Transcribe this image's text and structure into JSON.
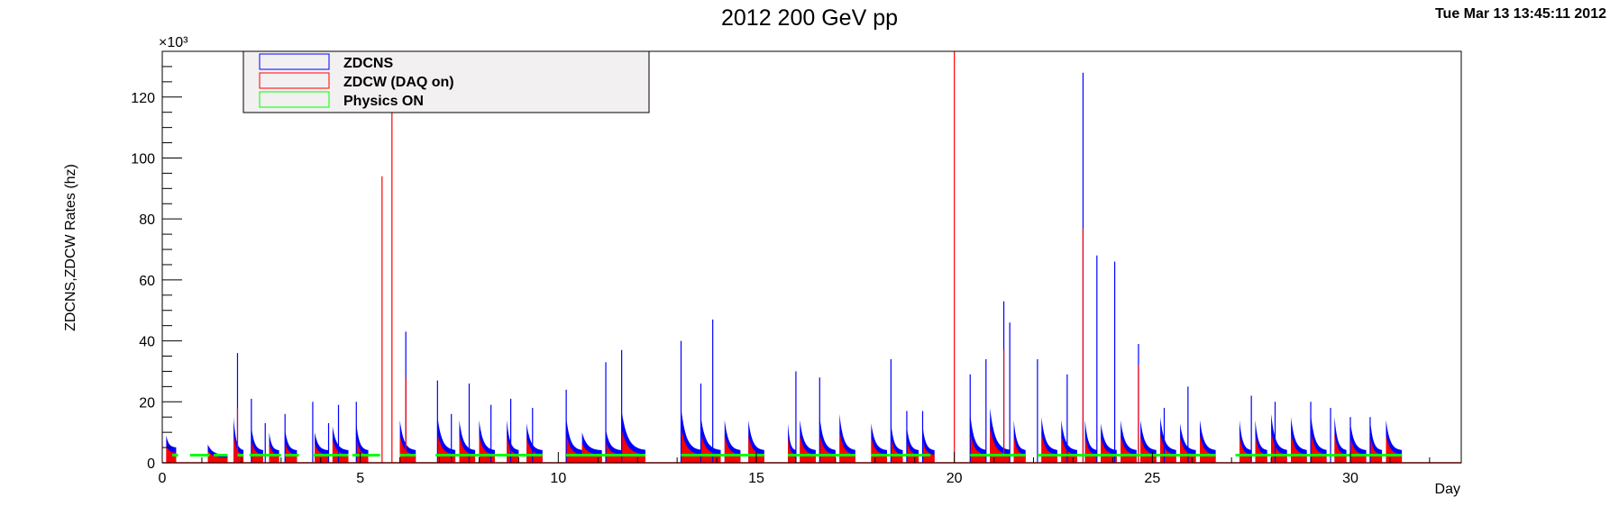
{
  "chart_data": {
    "type": "bar",
    "title": "2012 200 GeV pp",
    "timestamp": "Tue Mar 13 13:45:11 2012",
    "xlabel": "Day",
    "ylabel": "ZDCNS,ZDCW Rates (hz)",
    "y_exponent_label": "×10³",
    "xlim": [
      0,
      32.8
    ],
    "ylim": [
      0,
      135
    ],
    "x_ticks": [
      "0",
      "5",
      "10",
      "15",
      "20",
      "25",
      "30"
    ],
    "y_ticks": [
      "0",
      "20",
      "40",
      "60",
      "80",
      "100",
      "120"
    ],
    "grid": false,
    "legend_position": "top-left",
    "colors": {
      "ZDCNS": "#0000ff",
      "ZDCW (DAQ on)": "#ff0000",
      "Physics ON": "#00ff00"
    },
    "legend": [
      {
        "name": "ZDCNS",
        "color": "#0000ff"
      },
      {
        "name": "ZDCW (DAQ on)",
        "color": "#ff0000"
      },
      {
        "name": "Physics ON",
        "color": "#00ff00"
      }
    ],
    "series": [
      {
        "name": "ZDCNS",
        "values_note": "fills: [start_day, end_day, peak_rate_khz, end_rate_khz]",
        "fills": [
          [
            0.1,
            0.35,
            9,
            5
          ],
          [
            1.15,
            1.65,
            6,
            2.5
          ],
          [
            1.8,
            2.05,
            15,
            4
          ],
          [
            2.25,
            2.55,
            12,
            4
          ],
          [
            2.7,
            2.95,
            10,
            4
          ],
          [
            3.1,
            3.4,
            11,
            4
          ],
          [
            3.85,
            4.2,
            10,
            4
          ],
          [
            4.3,
            4.7,
            12,
            4
          ],
          [
            4.9,
            5.2,
            13,
            4
          ],
          [
            6.0,
            6.4,
            14,
            4
          ],
          [
            6.95,
            7.4,
            15,
            4
          ],
          [
            7.5,
            7.9,
            14,
            4
          ],
          [
            8.0,
            8.4,
            14,
            4
          ],
          [
            8.7,
            9.0,
            14,
            4
          ],
          [
            9.2,
            9.6,
            13,
            4
          ],
          [
            10.2,
            10.6,
            15,
            4
          ],
          [
            10.6,
            11.1,
            10,
            4
          ],
          [
            11.2,
            11.6,
            11,
            4
          ],
          [
            11.6,
            12.2,
            17,
            4
          ],
          [
            13.1,
            13.6,
            18,
            4
          ],
          [
            13.6,
            14.1,
            15,
            4
          ],
          [
            14.2,
            14.6,
            14,
            4
          ],
          [
            14.8,
            15.2,
            14,
            4
          ],
          [
            15.8,
            16.0,
            13,
            4
          ],
          [
            16.1,
            16.5,
            14,
            4
          ],
          [
            16.6,
            17.0,
            15,
            4
          ],
          [
            17.1,
            17.5,
            16,
            4
          ],
          [
            17.9,
            18.3,
            13,
            4
          ],
          [
            18.4,
            18.7,
            13,
            4
          ],
          [
            18.8,
            19.1,
            12,
            4
          ],
          [
            19.2,
            19.5,
            12,
            4
          ],
          [
            20.4,
            20.8,
            16,
            4
          ],
          [
            20.9,
            21.4,
            18,
            4
          ],
          [
            21.5,
            21.8,
            14,
            4
          ],
          [
            22.2,
            22.6,
            15,
            4
          ],
          [
            22.7,
            23.1,
            14,
            4
          ],
          [
            23.3,
            23.6,
            14,
            4
          ],
          [
            23.7,
            24.1,
            13,
            4
          ],
          [
            24.2,
            24.6,
            14,
            4
          ],
          [
            24.7,
            25.1,
            14,
            4
          ],
          [
            25.2,
            25.6,
            15,
            4
          ],
          [
            25.7,
            26.1,
            13,
            4
          ],
          [
            26.2,
            26.6,
            14,
            4
          ],
          [
            27.2,
            27.5,
            14,
            4
          ],
          [
            27.6,
            27.9,
            14,
            4
          ],
          [
            28.0,
            28.4,
            16,
            4
          ],
          [
            28.5,
            28.9,
            15,
            4
          ],
          [
            29.0,
            29.4,
            16,
            4
          ],
          [
            29.6,
            29.9,
            15,
            4
          ],
          [
            30.0,
            30.4,
            13,
            4
          ],
          [
            30.5,
            30.8,
            14,
            4
          ],
          [
            30.9,
            31.3,
            14,
            4
          ]
        ],
        "spikes": [
          [
            1.9,
            36
          ],
          [
            2.25,
            21
          ],
          [
            2.6,
            13
          ],
          [
            3.1,
            16
          ],
          [
            3.8,
            20
          ],
          [
            4.2,
            13
          ],
          [
            4.45,
            19
          ],
          [
            4.9,
            20
          ],
          [
            6.15,
            43
          ],
          [
            6.95,
            27
          ],
          [
            7.3,
            16
          ],
          [
            7.75,
            26
          ],
          [
            8.3,
            19
          ],
          [
            8.8,
            21
          ],
          [
            9.35,
            18
          ],
          [
            10.2,
            24
          ],
          [
            11.2,
            33
          ],
          [
            11.6,
            37
          ],
          [
            13.1,
            40
          ],
          [
            13.6,
            26
          ],
          [
            13.9,
            47
          ],
          [
            16.0,
            30
          ],
          [
            16.6,
            28
          ],
          [
            18.4,
            34
          ],
          [
            18.8,
            17
          ],
          [
            19.2,
            17
          ],
          [
            20.4,
            29
          ],
          [
            20.8,
            34
          ],
          [
            21.25,
            53
          ],
          [
            21.4,
            46
          ],
          [
            22.1,
            34
          ],
          [
            22.85,
            29
          ],
          [
            23.25,
            128
          ],
          [
            23.6,
            68
          ],
          [
            24.05,
            66
          ],
          [
            24.65,
            39
          ],
          [
            25.3,
            18
          ],
          [
            25.9,
            25
          ],
          [
            27.5,
            22
          ],
          [
            28.1,
            20
          ],
          [
            29.0,
            20
          ],
          [
            29.5,
            18
          ],
          [
            30.0,
            15
          ],
          [
            30.5,
            15
          ]
        ]
      },
      {
        "name": "ZDCW (DAQ on)",
        "values_note": "fills scale ~0.65 of ZDCNS; spikes [day, rate_khz]",
        "fill_scale": 0.65,
        "spikes": [
          [
            5.55,
            94
          ],
          [
            5.8,
            135
          ],
          [
            20.0,
            135
          ],
          [
            21.25,
            37
          ],
          [
            23.25,
            77
          ],
          [
            24.65,
            32
          ],
          [
            6.15,
            28
          ],
          [
            1.9,
            18
          ]
        ]
      },
      {
        "name": "Physics ON",
        "values_note": "segments [start_day, end_day] at ~2.5 khz",
        "level": 2.5,
        "segments": [
          [
            0.25,
            0.4
          ],
          [
            0.7,
            1.2
          ],
          [
            1.3,
            1.65
          ],
          [
            1.9,
            2.05
          ],
          [
            2.2,
            3.0
          ],
          [
            3.1,
            3.45
          ],
          [
            3.8,
            4.7
          ],
          [
            4.8,
            5.2
          ],
          [
            5.2,
            5.5
          ],
          [
            6.0,
            6.4
          ],
          [
            6.9,
            9.6
          ],
          [
            10.2,
            12.2
          ],
          [
            13.1,
            15.2
          ],
          [
            15.8,
            17.5
          ],
          [
            17.9,
            19.4
          ],
          [
            20.4,
            21.8
          ],
          [
            22.1,
            26.6
          ],
          [
            27.1,
            31.3
          ]
        ]
      }
    ]
  }
}
